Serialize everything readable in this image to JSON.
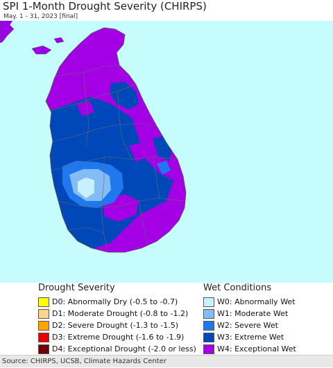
{
  "title": "SPI 1-Month Drought Severity (CHIRPS)",
  "subtitle": "May. 1 - 31, 2023 [final]",
  "colors": {
    "ocean": "#c6fcfc",
    "land_mainland": "#9b00e8",
    "W0": "#c9f0ff",
    "W1": "#84bdf5",
    "W2": "#1f78ee",
    "W3": "#0048b9",
    "W4": "#a300e6",
    "D0": "#ffff00",
    "D1": "#fcd38a",
    "D2": "#ffa500",
    "D3": "#e80000",
    "D4": "#730000"
  },
  "legend": {
    "drought_title": "Drought Severity",
    "drought_items": [
      {
        "code": "D0",
        "label": "D0: Abnormally Dry (-0.5 to -0.7)",
        "color": "#ffff00"
      },
      {
        "code": "D1",
        "label": "D1: Moderate Drought (-0.8 to -1.2)",
        "color": "#fcd38a"
      },
      {
        "code": "D2",
        "label": "D2: Severe Drought (-1.3 to -1.5)",
        "color": "#ffa500"
      },
      {
        "code": "D3",
        "label": "D3: Extreme Drought (-1.6 to -1.9)",
        "color": "#e80000"
      },
      {
        "code": "D4",
        "label": "D4: Exceptional Drought (-2.0 or less)",
        "color": "#730000"
      }
    ],
    "wet_title": "Wet Conditions",
    "wet_items": [
      {
        "code": "W0",
        "label": "W0: Abnormally Wet",
        "color": "#c9f0ff"
      },
      {
        "code": "W1",
        "label": "W1: Moderate Wet",
        "color": "#84bdf5"
      },
      {
        "code": "W2",
        "label": "W2: Severe Wet",
        "color": "#1f78ee"
      },
      {
        "code": "W3",
        "label": "W3: Extreme Wet",
        "color": "#0048b9"
      },
      {
        "code": "W4",
        "label": "W4: Exceptional Wet",
        "color": "#a300e6"
      }
    ]
  },
  "footer": "Source: CHIRPS, UCSB, Climate Hazards Center"
}
